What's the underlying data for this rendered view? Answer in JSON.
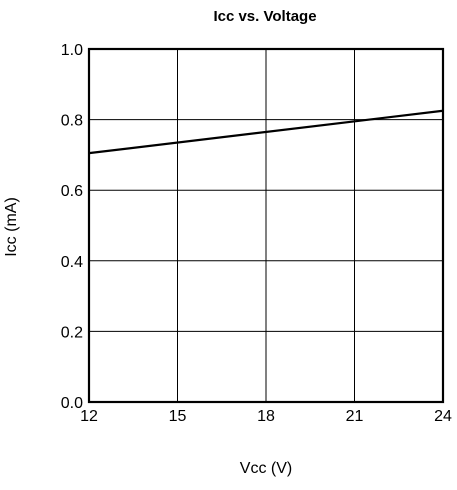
{
  "chart_data": {
    "type": "line",
    "title": "Icc vs. Voltage",
    "xlabel": "Vcc (V)",
    "ylabel": "Icc (mA)",
    "xlim": [
      12,
      24
    ],
    "ylim": [
      0.0,
      1.0
    ],
    "x_ticks": [
      12,
      15,
      18,
      21,
      24
    ],
    "y_ticks": [
      0.0,
      0.2,
      0.4,
      0.6,
      0.8,
      1.0
    ],
    "x_tick_labels": [
      "12",
      "15",
      "18",
      "21",
      "24"
    ],
    "y_tick_labels": [
      "0.0",
      "0.2",
      "0.4",
      "0.6",
      "0.8",
      "1.0"
    ],
    "grid": true,
    "series": [
      {
        "x": [
          12,
          24
        ],
        "y": [
          0.705,
          0.825
        ]
      }
    ],
    "colors": {
      "line": "#000000",
      "grid": "#000000",
      "background": "#ffffff"
    }
  }
}
